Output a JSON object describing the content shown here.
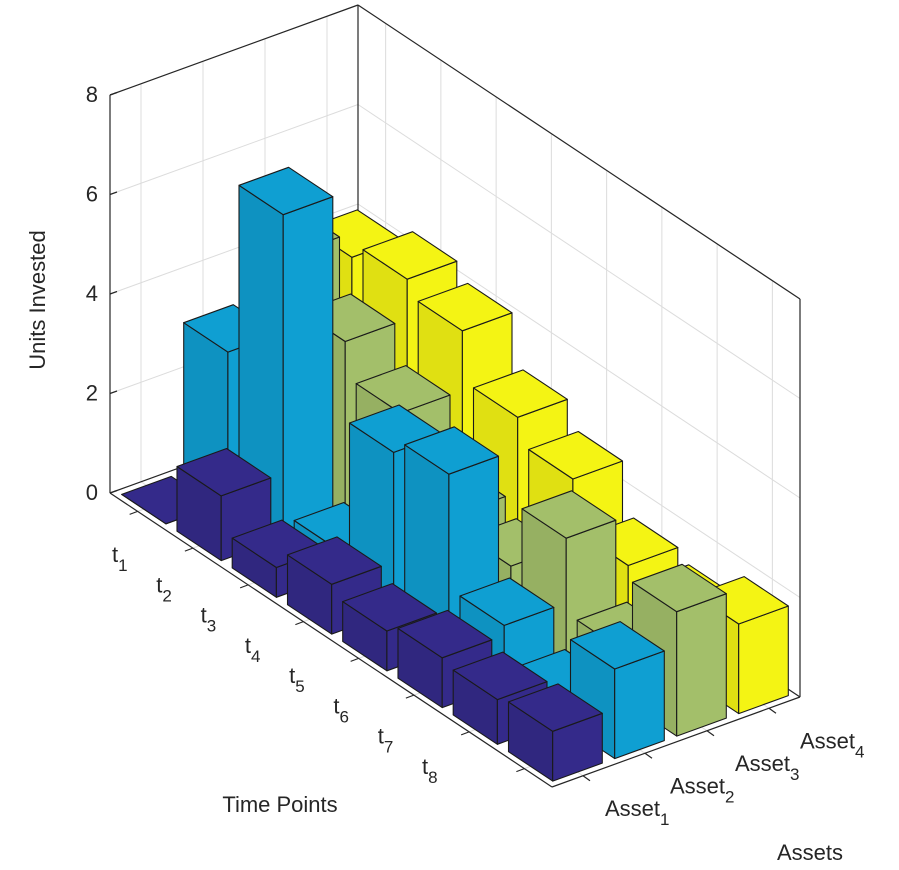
{
  "chart_data": {
    "type": "bar3",
    "xlabel": "Time Points",
    "ylabel": "Assets",
    "zlabel": "Units Invested",
    "categories": [
      "t1",
      "t2",
      "t3",
      "t4",
      "t5",
      "t6",
      "t7",
      "t8"
    ],
    "series": [
      {
        "name": "Asset1",
        "color": "#342a8a",
        "values": [
          0,
          1.3,
          0.6,
          1.0,
          0.8,
          1.0,
          0.9,
          1.0
        ]
      },
      {
        "name": "Asset2",
        "color": "#0f9fd2",
        "values": [
          3.0,
          6.5,
          0.5,
          3.2,
          3.5,
          1.2,
          0.5,
          1.8
        ]
      },
      {
        "name": "Asset3",
        "color": "#a3bf6a",
        "values": [
          4.5,
          3.5,
          2.8,
          1.5,
          1.2,
          2.5,
          1.0,
          2.5
        ]
      },
      {
        "name": "Asset4",
        "color": "#f4f414",
        "values": [
          4.0,
          4.3,
          4.0,
          3.0,
          2.5,
          1.5,
          1.3,
          1.8
        ]
      }
    ],
    "zlim": [
      0,
      8
    ],
    "zticks": [
      0,
      2,
      4,
      6,
      8
    ],
    "grid": true
  }
}
